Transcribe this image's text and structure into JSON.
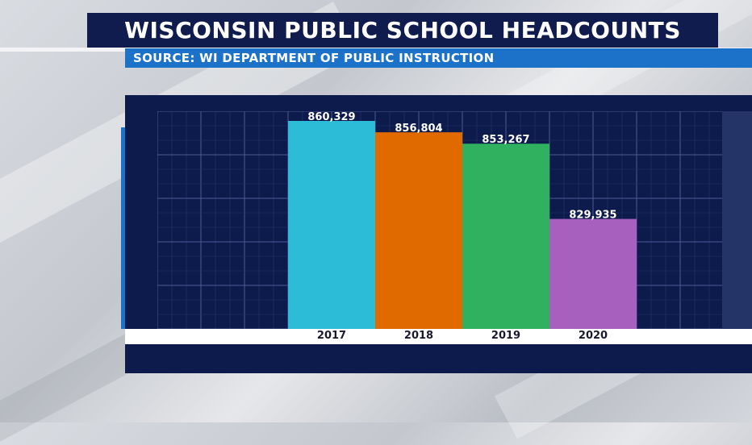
{
  "header": {
    "title": "WISCONSIN PUBLIC SCHOOL HEADCOUNTS",
    "source": "SOURCE: WI DEPARTMENT OF PUBLIC INSTRUCTION"
  },
  "colors": {
    "title_bg": "#0f1c4d",
    "source_bg": "#1c72c9",
    "panel_bg": "#0d1a4c",
    "grid": "#3b4a80"
  },
  "chart_data": {
    "type": "bar",
    "title": "WISCONSIN PUBLIC SCHOOL HEADCOUNTS",
    "categories": [
      "2017",
      "2018",
      "2019",
      "2020"
    ],
    "values": [
      860329,
      856804,
      853267,
      829935
    ],
    "value_labels": [
      "860,329",
      "856,804",
      "853,267",
      "829,935"
    ],
    "bar_colors": [
      "#2dbcd8",
      "#e06a00",
      "#2fb160",
      "#a760bd"
    ],
    "xlabel": "",
    "ylabel": "",
    "ylim": [
      0,
      900000
    ],
    "grid": true,
    "legend": "none"
  }
}
